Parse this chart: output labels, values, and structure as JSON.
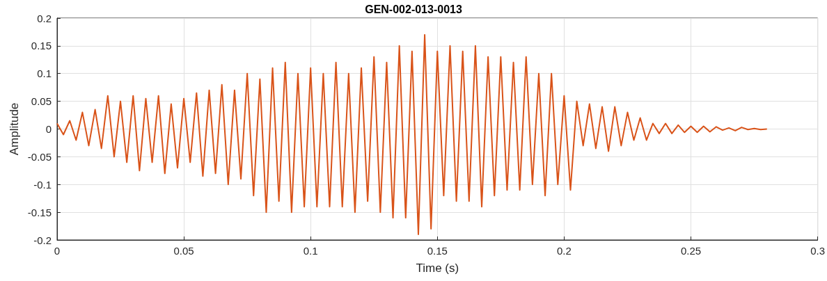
{
  "chart_data": {
    "type": "line",
    "title": "GEN-002-013-0013",
    "xlabel": "Time (s)",
    "ylabel": "Amplitude",
    "x": [
      0,
      0.0025,
      0.005,
      0.0075,
      0.01,
      0.0125,
      0.015,
      0.0175,
      0.02,
      0.0225,
      0.025,
      0.0275,
      0.03,
      0.0325,
      0.035,
      0.0375,
      0.04,
      0.0425,
      0.045,
      0.0475,
      0.05,
      0.0525,
      0.055,
      0.0575,
      0.06,
      0.0625,
      0.065,
      0.0675,
      0.07,
      0.0725,
      0.075,
      0.0775,
      0.08,
      0.0825,
      0.085,
      0.0875,
      0.09,
      0.0925,
      0.095,
      0.0975,
      0.1,
      0.1025,
      0.105,
      0.1075,
      0.11,
      0.1125,
      0.115,
      0.1175,
      0.12,
      0.1225,
      0.125,
      0.1275,
      0.13,
      0.1325,
      0.135,
      0.1375,
      0.14,
      0.1425,
      0.145,
      0.1475,
      0.15,
      0.1525,
      0.155,
      0.1575,
      0.16,
      0.1625,
      0.165,
      0.1675,
      0.17,
      0.1725,
      0.175,
      0.1775,
      0.18,
      0.1825,
      0.185,
      0.1875,
      0.19,
      0.1925,
      0.195,
      0.1975,
      0.2,
      0.2025,
      0.205,
      0.2075,
      0.21,
      0.2125,
      0.215,
      0.2175,
      0.22,
      0.2225,
      0.225,
      0.2275,
      0.23,
      0.2325,
      0.235,
      0.2375,
      0.24,
      0.2425,
      0.245,
      0.2475,
      0.25,
      0.2525,
      0.255,
      0.2575,
      0.26,
      0.2625,
      0.265,
      0.2675,
      0.27,
      0.2725,
      0.275,
      0.2775,
      0.28
    ],
    "series": [
      {
        "color": "#d95319",
        "values": [
          0.01,
          -0.01,
          0.015,
          -0.02,
          0.03,
          -0.03,
          0.035,
          -0.035,
          0.06,
          -0.05,
          0.05,
          -0.06,
          0.06,
          -0.075,
          0.055,
          -0.06,
          0.06,
          -0.08,
          0.045,
          -0.07,
          0.055,
          -0.06,
          0.065,
          -0.085,
          0.07,
          -0.08,
          0.08,
          -0.1,
          0.07,
          -0.09,
          0.1,
          -0.12,
          0.09,
          -0.15,
          0.11,
          -0.13,
          0.12,
          -0.15,
          0.1,
          -0.14,
          0.11,
          -0.14,
          0.1,
          -0.14,
          0.12,
          -0.14,
          0.1,
          -0.15,
          0.11,
          -0.13,
          0.13,
          -0.15,
          0.12,
          -0.16,
          0.15,
          -0.16,
          0.14,
          -0.19,
          0.17,
          -0.18,
          0.14,
          -0.12,
          0.15,
          -0.13,
          0.14,
          -0.13,
          0.15,
          -0.14,
          0.13,
          -0.12,
          0.13,
          -0.11,
          0.12,
          -0.11,
          0.13,
          -0.1,
          0.1,
          -0.12,
          0.1,
          -0.1,
          0.06,
          -0.11,
          0.05,
          -0.03,
          0.045,
          -0.035,
          0.04,
          -0.04,
          0.04,
          -0.03,
          0.03,
          -0.02,
          0.02,
          -0.02,
          0.01,
          -0.008,
          0.01,
          -0.008,
          0.007,
          -0.006,
          0.005,
          -0.006,
          0.005,
          -0.005,
          0.004,
          -0.002,
          0.002,
          -0.003,
          0.003,
          -0.001,
          0.001,
          -0.001,
          0
        ]
      }
    ],
    "xlim": [
      0,
      0.3
    ],
    "xticks": [
      0,
      0.05,
      0.1,
      0.15,
      0.2,
      0.25,
      0.3
    ],
    "ylim": [
      -0.2,
      0.2
    ],
    "yticks": [
      -0.2,
      -0.15,
      -0.1,
      -0.05,
      0,
      0.05,
      0.1,
      0.15,
      0.2
    ],
    "grid": true,
    "marker": "none",
    "line_style": "solid"
  }
}
